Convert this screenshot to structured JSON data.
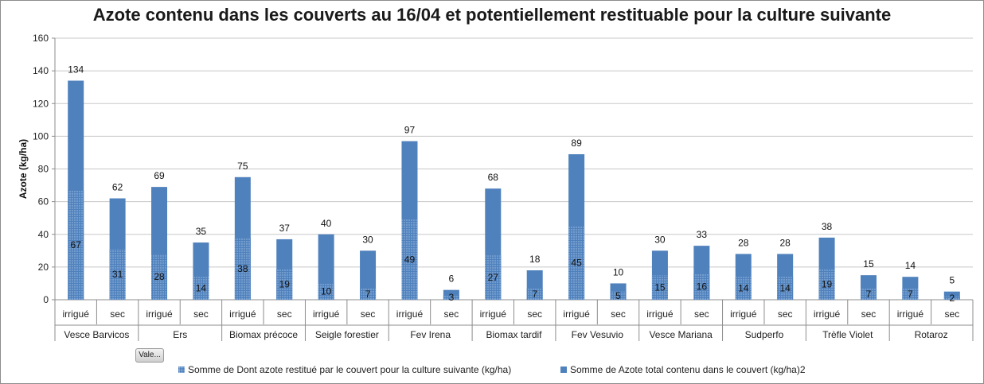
{
  "chart_data": {
    "type": "bar",
    "stacked": false,
    "title": "Azote contenu dans les couverts au 16/04 et potentiellement restituable pour la culture suivante",
    "ylabel": "Azote (kg/ha)",
    "xlabel": "",
    "ylim": [
      0,
      160
    ],
    "yticks": [
      0,
      20,
      40,
      60,
      80,
      100,
      120,
      140,
      160
    ],
    "grid": true,
    "legend_position": "bottom",
    "groups": [
      {
        "name": "Vesce Barvicos",
        "categories": [
          "irrigué",
          "sec"
        ]
      },
      {
        "name": "Ers",
        "categories": [
          "irrigué",
          "sec"
        ]
      },
      {
        "name": "Biomax précoce",
        "categories": [
          "irrigué",
          "sec"
        ]
      },
      {
        "name": "Seigle forestier",
        "categories": [
          "irrigué",
          "sec"
        ]
      },
      {
        "name": "Fev Irena",
        "categories": [
          "irrigué",
          "sec"
        ]
      },
      {
        "name": "Biomax tardif",
        "categories": [
          "irrigué",
          "sec"
        ]
      },
      {
        "name": "Fev Vesuvio",
        "categories": [
          "irrigué",
          "sec"
        ]
      },
      {
        "name": "Vesce Mariana",
        "categories": [
          "irrigué",
          "sec"
        ]
      },
      {
        "name": "Sudperfo",
        "categories": [
          "irrigué",
          "sec"
        ]
      },
      {
        "name": "Trèfle Violet",
        "categories": [
          "irrigué",
          "sec"
        ]
      },
      {
        "name": "Rotaroz",
        "categories": [
          "irrigué",
          "sec"
        ]
      }
    ],
    "series": [
      {
        "name": "Somme de Azote total contenu dans le couvert (kg/ha)2",
        "color": "#4f81bd",
        "values": [
          134,
          62,
          69,
          35,
          75,
          37,
          40,
          30,
          97,
          6,
          68,
          18,
          89,
          10,
          30,
          33,
          28,
          28,
          38,
          15,
          14,
          5
        ]
      },
      {
        "name": "Somme de Dont azote restitué par le couvert pour la culture suivante (kg/ha)",
        "color": "#4f81bd",
        "pattern": "dotted",
        "values": [
          67,
          31,
          28,
          14,
          38,
          19,
          10,
          7,
          49,
          3,
          27,
          7,
          45,
          5,
          15,
          16,
          14,
          14,
          19,
          7,
          7,
          2
        ]
      }
    ]
  },
  "ui": {
    "field_button_label": "Vale..."
  }
}
